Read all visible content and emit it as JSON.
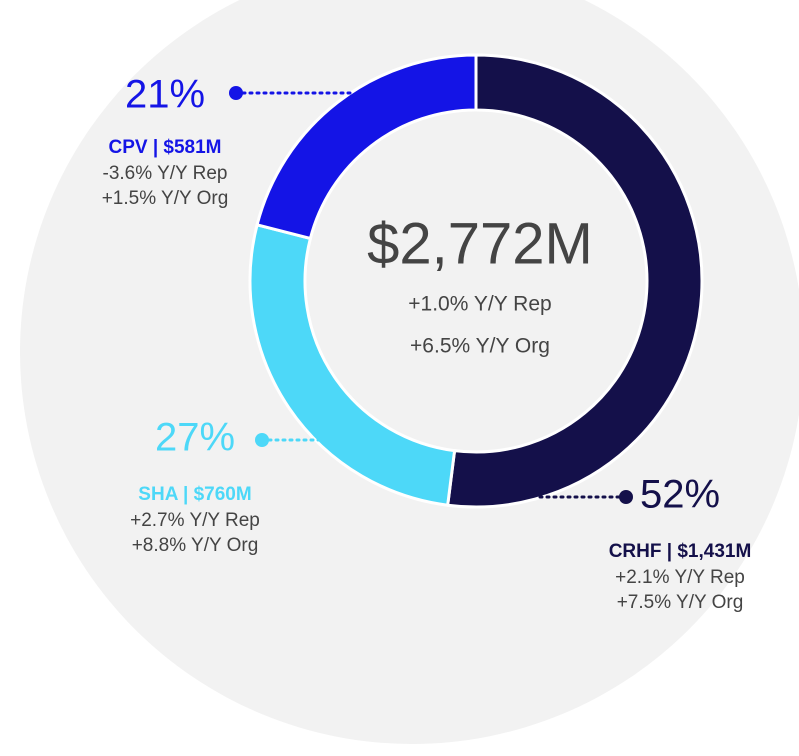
{
  "chart_data": {
    "type": "pie",
    "donut": true,
    "categories": [
      "CRHF | $1,431M",
      "SHA | $760M",
      "CPV | $581M"
    ],
    "values": [
      52,
      27,
      21
    ],
    "value_labels": [
      "52%",
      "27%",
      "21%"
    ],
    "colors": [
      "#14104a",
      "#4dd8f8",
      "#1414e6"
    ],
    "details": [
      [
        "+2.1% Y/Y Rep",
        "+7.5% Y/Y Org"
      ],
      [
        "+2.7% Y/Y Rep",
        "+8.8% Y/Y Org"
      ],
      [
        "-3.6% Y/Y Rep",
        "+1.5% Y/Y Org"
      ]
    ],
    "center": {
      "title": "$2,772M",
      "lines": [
        "+1.0% Y/Y Rep",
        "+6.5% Y/Y Org"
      ]
    }
  }
}
